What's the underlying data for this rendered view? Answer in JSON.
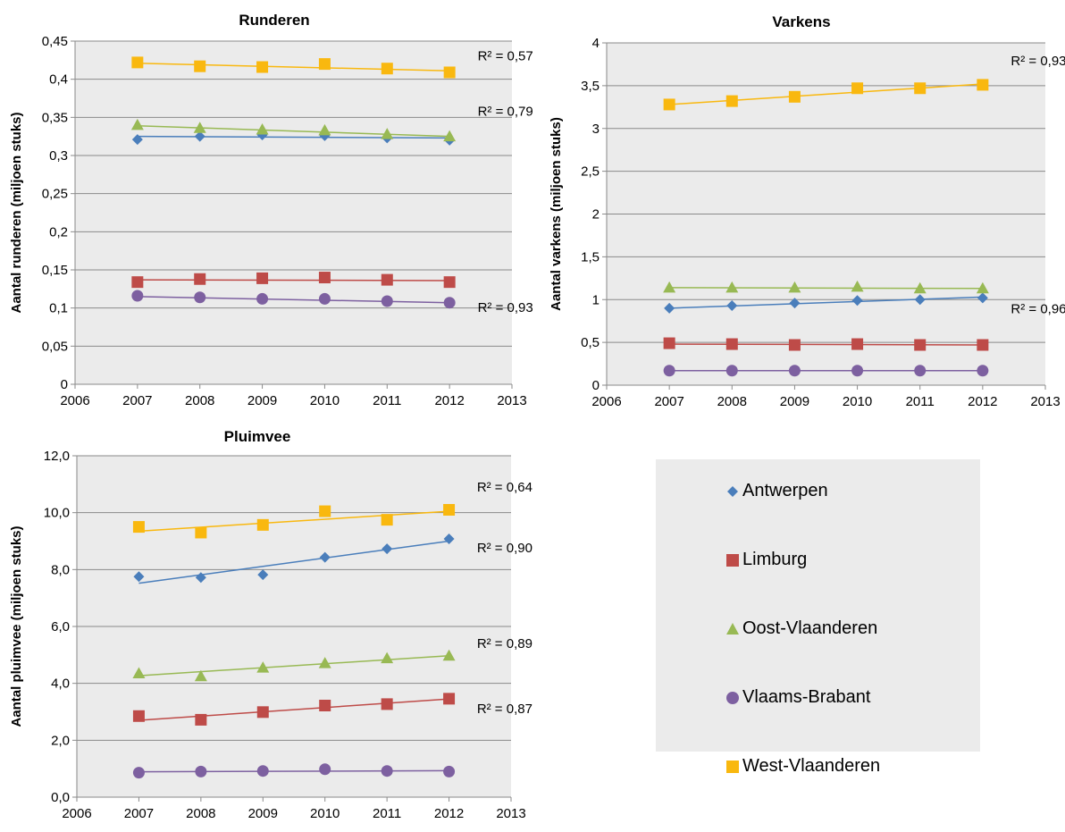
{
  "series_styles": [
    {
      "name": "Antwerpen",
      "color": "#4a7ebb",
      "marker": "diamond"
    },
    {
      "name": "Limburg",
      "color": "#be4b48",
      "marker": "square"
    },
    {
      "name": "Oost-Vlaanderen",
      "color": "#98b954",
      "marker": "triangle"
    },
    {
      "name": "Vlaams-Brabant",
      "color": "#7d60a0",
      "marker": "circle"
    },
    {
      "name": "West-Vlaanderen",
      "color": "#f9b80f",
      "marker": "square"
    }
  ],
  "chart_data": [
    {
      "type": "scatter",
      "title": "Runderen",
      "ylabel": "Aantal runderen (miljoen stuks)",
      "xlim": [
        2006,
        2013
      ],
      "ylim": [
        0,
        0.45
      ],
      "xticks": [
        "2006",
        "2007",
        "2008",
        "2009",
        "2010",
        "2011",
        "2012",
        "2013"
      ],
      "yticks": [
        "0",
        "0,05",
        "0,1",
        "0,15",
        "0,2",
        "0,25",
        "0,3",
        "0,35",
        "0,4",
        "0,45"
      ],
      "grid": true,
      "x": [
        2007,
        2008,
        2009,
        2010,
        2011,
        2012
      ],
      "series": [
        {
          "name": "Antwerpen",
          "values": [
            0.321,
            0.325,
            0.327,
            0.326,
            0.323,
            0.32
          ],
          "trend": [
            0.325,
            0.323
          ]
        },
        {
          "name": "Limburg",
          "values": [
            0.134,
            0.138,
            0.139,
            0.14,
            0.137,
            0.134
          ],
          "trend": [
            0.137,
            0.136
          ]
        },
        {
          "name": "Oost-Vlaanderen",
          "values": [
            0.34,
            0.336,
            0.334,
            0.333,
            0.328,
            0.325
          ],
          "trend": [
            0.339,
            0.325
          ]
        },
        {
          "name": "Vlaams-Brabant",
          "values": [
            0.116,
            0.114,
            0.112,
            0.112,
            0.109,
            0.107
          ],
          "trend": [
            0.115,
            0.107
          ]
        },
        {
          "name": "West-Vlaanderen",
          "values": [
            0.422,
            0.417,
            0.416,
            0.42,
            0.414,
            0.409
          ],
          "trend": [
            0.421,
            0.411
          ]
        }
      ],
      "annotations": [
        {
          "text": "R² = 0,57",
          "x": 2012.45,
          "y": 0.425
        },
        {
          "text": "R² = 0,79",
          "x": 2012.45,
          "y": 0.352
        },
        {
          "text": "R² = 0,93",
          "x": 2012.45,
          "y": 0.095
        }
      ]
    },
    {
      "type": "scatter",
      "title": "Varkens",
      "ylabel": "Aantal varkens (miljoen stuks)",
      "xlim": [
        2006,
        2013
      ],
      "ylim": [
        0,
        4
      ],
      "xticks": [
        "2006",
        "2007",
        "2008",
        "2009",
        "2010",
        "2011",
        "2012",
        "2013"
      ],
      "yticks": [
        "0",
        "0,5",
        "1",
        "1,5",
        "2",
        "2,5",
        "3",
        "3,5",
        "4"
      ],
      "grid": true,
      "x": [
        2007,
        2008,
        2009,
        2010,
        2011,
        2012
      ],
      "series": [
        {
          "name": "Antwerpen",
          "values": [
            0.9,
            0.93,
            0.96,
            0.99,
            1.0,
            1.02
          ],
          "trend": [
            0.9,
            1.03
          ]
        },
        {
          "name": "Limburg",
          "values": [
            0.49,
            0.48,
            0.47,
            0.48,
            0.47,
            0.47
          ],
          "trend": [
            0.48,
            0.47
          ]
        },
        {
          "name": "Oost-Vlaanderen",
          "values": [
            1.14,
            1.14,
            1.14,
            1.15,
            1.13,
            1.13
          ],
          "trend": [
            1.14,
            1.13
          ]
        },
        {
          "name": "Vlaams-Brabant",
          "values": [
            0.17,
            0.17,
            0.17,
            0.17,
            0.17,
            0.17
          ],
          "trend": [
            0.17,
            0.17
          ]
        },
        {
          "name": "West-Vlaanderen",
          "values": [
            3.28,
            3.32,
            3.37,
            3.47,
            3.47,
            3.51
          ],
          "trend": [
            3.28,
            3.52
          ]
        }
      ],
      "annotations": [
        {
          "text": "R² = 0,93",
          "x": 2012.45,
          "y": 3.74
        },
        {
          "text": "R² = 0,96",
          "x": 2012.45,
          "y": 0.84
        }
      ]
    },
    {
      "type": "scatter",
      "title": "Pluimvee",
      "ylabel": "Aantal pluimvee (miljoen stuks)",
      "xlim": [
        2006,
        2013
      ],
      "ylim": [
        0,
        12
      ],
      "xticks": [
        "2006",
        "2007",
        "2008",
        "2009",
        "2010",
        "2011",
        "2012",
        "2013"
      ],
      "yticks": [
        "0,0",
        "2,0",
        "4,0",
        "6,0",
        "8,0",
        "10,0",
        "12,0"
      ],
      "grid": true,
      "x": [
        2007,
        2008,
        2009,
        2010,
        2011,
        2012
      ],
      "series": [
        {
          "name": "Antwerpen",
          "values": [
            7.75,
            7.72,
            7.82,
            8.43,
            8.73,
            9.08
          ],
          "trend": [
            7.52,
            9.0
          ]
        },
        {
          "name": "Limburg",
          "values": [
            2.85,
            2.72,
            2.99,
            3.22,
            3.27,
            3.46
          ],
          "trend": [
            2.7,
            3.45
          ]
        },
        {
          "name": "Oost-Vlaanderen",
          "values": [
            4.35,
            4.25,
            4.55,
            4.71,
            4.88,
            4.97
          ],
          "trend": [
            4.27,
            4.97
          ]
        },
        {
          "name": "Vlaams-Brabant",
          "values": [
            0.86,
            0.9,
            0.92,
            0.98,
            0.92,
            0.9
          ],
          "trend": [
            0.89,
            0.93
          ]
        },
        {
          "name": "West-Vlaanderen",
          "values": [
            9.5,
            9.3,
            9.57,
            10.05,
            9.75,
            10.1
          ],
          "trend": [
            9.35,
            10.05
          ]
        }
      ],
      "annotations": [
        {
          "text": "R² = 0,64",
          "x": 2012.45,
          "y": 10.75
        },
        {
          "text": "R² = 0,90",
          "x": 2012.45,
          "y": 8.6
        },
        {
          "text": "R² = 0,89",
          "x": 2012.45,
          "y": 5.25
        },
        {
          "text": "R² = 0,87",
          "x": 2012.45,
          "y": 2.95
        }
      ]
    }
  ],
  "legend": {
    "items": [
      "Antwerpen",
      "Limburg",
      "Oost-Vlaanderen",
      "Vlaams-Brabant",
      "West-Vlaanderen"
    ]
  }
}
